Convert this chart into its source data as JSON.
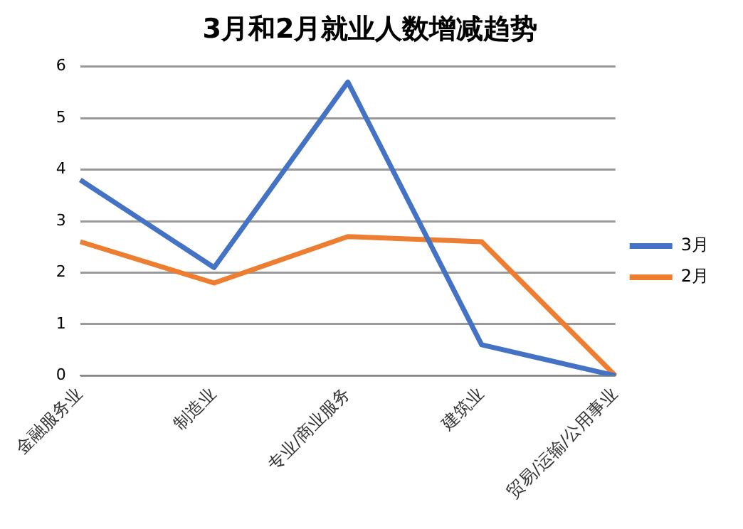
{
  "chart_data": {
    "type": "line",
    "title": "3月和2月就业人数增减趋势",
    "categories": [
      "金融服务业",
      "制造业",
      "专业/商业服务",
      "建筑业",
      "贸易/运输/公用事业"
    ],
    "series": [
      {
        "name": "3月",
        "color": "#4472c4",
        "values": [
          3.8,
          2.1,
          5.7,
          0.6,
          0
        ]
      },
      {
        "name": "2月",
        "color": "#ed7d31",
        "values": [
          2.6,
          1.8,
          2.7,
          2.6,
          0
        ]
      }
    ],
    "ylim": [
      0,
      6
    ],
    "yticks": [
      0,
      1,
      2,
      3,
      4,
      5,
      6
    ],
    "grid": "y",
    "legend": "right",
    "marker": "none",
    "line_style": "solid"
  }
}
